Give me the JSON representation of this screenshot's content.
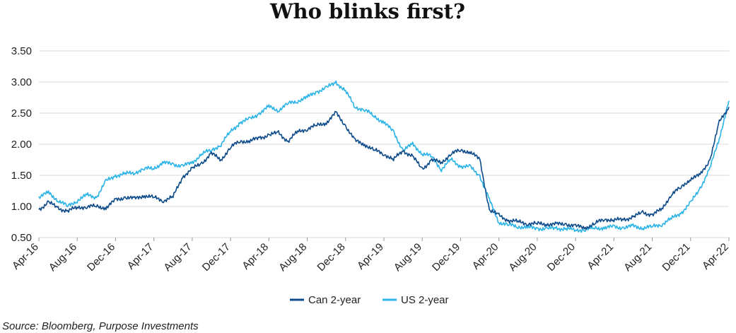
{
  "chart_data": {
    "type": "line",
    "title": "Who blinks first?",
    "source": "Source: Bloomberg, Purpose Investments",
    "xlabel": "",
    "ylabel": "",
    "ylim": [
      0.5,
      3.5
    ],
    "yticks": [
      "0.50",
      "1.00",
      "1.50",
      "2.00",
      "2.50",
      "3.00",
      "3.50"
    ],
    "xticks": [
      "Apr-16",
      "Aug-16",
      "Dec-16",
      "Apr-17",
      "Aug-17",
      "Dec-17",
      "Apr-18",
      "Aug-18",
      "Dec-18",
      "Apr-19",
      "Aug-19",
      "Dec-19",
      "Apr-20",
      "Aug-20",
      "Dec-20",
      "Apr-21",
      "Aug-21",
      "Dec-21",
      "Apr-22"
    ],
    "grid": true,
    "legend": "bottom",
    "colors": {
      "can": "#0d4a8a",
      "us": "#2bb3e8"
    },
    "series": [
      {
        "name": "Can 2-year",
        "color": "#0d4a8a",
        "x": [
          "2016-04",
          "2016-05",
          "2016-06",
          "2016-07",
          "2016-08",
          "2016-09",
          "2016-10",
          "2016-11",
          "2016-12",
          "2017-01",
          "2017-02",
          "2017-03",
          "2017-04",
          "2017-05",
          "2017-06",
          "2017-07",
          "2017-08",
          "2017-09",
          "2017-10",
          "2017-11",
          "2017-12",
          "2018-01",
          "2018-02",
          "2018-03",
          "2018-04",
          "2018-05",
          "2018-06",
          "2018-07",
          "2018-08",
          "2018-09",
          "2018-10",
          "2018-11",
          "2018-12",
          "2019-01",
          "2019-02",
          "2019-03",
          "2019-04",
          "2019-05",
          "2019-06",
          "2019-07",
          "2019-08",
          "2019-09",
          "2019-10",
          "2019-11",
          "2019-12",
          "2020-01",
          "2020-02",
          "2020-03",
          "2020-04",
          "2020-05",
          "2020-06",
          "2020-07",
          "2020-08",
          "2020-09",
          "2020-10",
          "2020-11",
          "2020-12",
          "2021-01",
          "2021-02",
          "2021-03",
          "2021-04",
          "2021-05",
          "2021-06",
          "2021-07",
          "2021-08",
          "2021-09",
          "2021-10",
          "2021-11",
          "2021-12",
          "2022-01",
          "2022-02",
          "2022-03",
          "2022-04"
        ],
        "values": [
          0.95,
          1.07,
          0.97,
          0.93,
          0.98,
          1.0,
          1.0,
          0.98,
          1.1,
          1.15,
          1.12,
          1.18,
          1.14,
          1.1,
          1.15,
          1.48,
          1.6,
          1.7,
          1.85,
          1.75,
          1.95,
          2.05,
          2.05,
          2.1,
          2.15,
          2.18,
          2.05,
          2.2,
          2.25,
          2.3,
          2.35,
          2.5,
          2.3,
          2.05,
          2.0,
          1.9,
          1.85,
          1.75,
          1.9,
          1.8,
          1.6,
          1.75,
          1.7,
          1.85,
          1.9,
          1.88,
          1.75,
          0.95,
          0.85,
          0.78,
          0.75,
          0.73,
          0.72,
          0.72,
          0.71,
          0.72,
          0.68,
          0.66,
          0.72,
          0.8,
          0.78,
          0.79,
          0.83,
          0.9,
          0.87,
          0.95,
          1.2,
          1.3,
          1.45,
          1.5,
          1.75,
          2.35,
          2.6
        ]
      },
      {
        "name": "US 2-year",
        "color": "#2bb3e8",
        "x": [
          "2016-04",
          "2016-05",
          "2016-06",
          "2016-07",
          "2016-08",
          "2016-09",
          "2016-10",
          "2016-11",
          "2016-12",
          "2017-01",
          "2017-02",
          "2017-03",
          "2017-04",
          "2017-05",
          "2017-06",
          "2017-07",
          "2017-08",
          "2017-09",
          "2017-10",
          "2017-11",
          "2017-12",
          "2018-01",
          "2018-02",
          "2018-03",
          "2018-04",
          "2018-05",
          "2018-06",
          "2018-07",
          "2018-08",
          "2018-09",
          "2018-10",
          "2018-11",
          "2018-12",
          "2019-01",
          "2019-02",
          "2019-03",
          "2019-04",
          "2019-05",
          "2019-06",
          "2019-07",
          "2019-08",
          "2019-09",
          "2019-10",
          "2019-11",
          "2019-12",
          "2020-01",
          "2020-02",
          "2020-03",
          "2020-04",
          "2020-05",
          "2020-06",
          "2020-07",
          "2020-08",
          "2020-09",
          "2020-10",
          "2020-11",
          "2020-12",
          "2021-01",
          "2021-02",
          "2021-03",
          "2021-04",
          "2021-05",
          "2021-06",
          "2021-07",
          "2021-08",
          "2021-09",
          "2021-10",
          "2021-11",
          "2021-12",
          "2022-01",
          "2022-02",
          "2022-03",
          "2022-04"
        ],
        "values": [
          1.15,
          1.22,
          1.1,
          1.0,
          1.1,
          1.18,
          1.15,
          1.4,
          1.5,
          1.52,
          1.55,
          1.6,
          1.62,
          1.7,
          1.68,
          1.65,
          1.7,
          1.85,
          1.9,
          2.0,
          2.2,
          2.35,
          2.4,
          2.5,
          2.6,
          2.55,
          2.65,
          2.7,
          2.75,
          2.85,
          2.9,
          3.0,
          2.85,
          2.6,
          2.55,
          2.45,
          2.35,
          2.2,
          1.9,
          2.0,
          1.85,
          1.8,
          1.6,
          1.75,
          1.65,
          1.63,
          1.5,
          1.1,
          0.75,
          0.7,
          0.68,
          0.66,
          0.65,
          0.64,
          0.65,
          0.64,
          0.62,
          0.63,
          0.65,
          0.66,
          0.67,
          0.66,
          0.68,
          0.66,
          0.67,
          0.72,
          0.8,
          0.9,
          1.05,
          1.3,
          1.6,
          2.1,
          2.7
        ]
      }
    ]
  }
}
